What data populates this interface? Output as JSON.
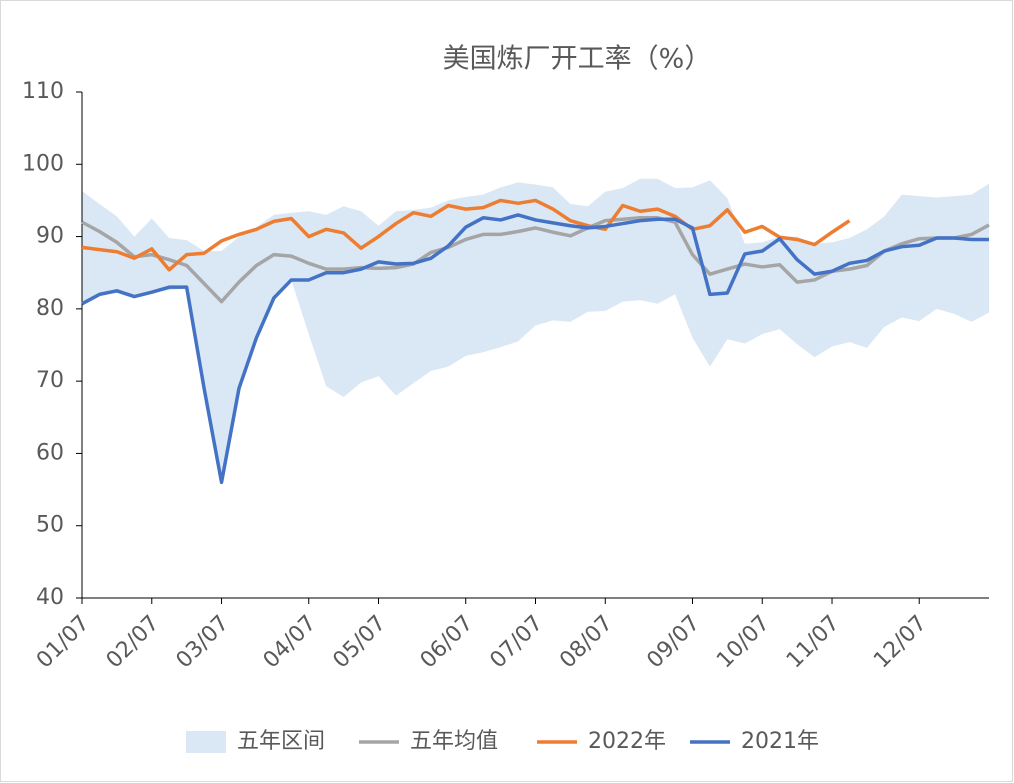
{
  "chart_data": {
    "type": "line",
    "title": "美国炼厂开工率（%）",
    "categories": [
      "01/07",
      null,
      null,
      null,
      "02/07",
      null,
      null,
      null,
      "03/07",
      null,
      null,
      null,
      null,
      "04/07",
      null,
      null,
      null,
      "05/07",
      null,
      null,
      null,
      null,
      "06/07",
      null,
      null,
      null,
      "07/07",
      null,
      null,
      null,
      "08/07",
      null,
      null,
      null,
      null,
      "09/07",
      null,
      null,
      null,
      "10/07",
      null,
      null,
      null,
      "11/07",
      null,
      null,
      null,
      null,
      "12/07",
      null,
      null,
      null,
      null
    ],
    "ylim": [
      40,
      110
    ],
    "yticks": [
      40,
      50,
      60,
      70,
      80,
      90,
      100,
      110
    ],
    "band": {
      "name": "五年区间",
      "color": "#dae8f5",
      "upper": [
        96.3,
        94.5,
        92.8,
        90.0,
        92.5,
        89.8,
        89.5,
        88.0,
        88.0,
        90.0,
        91.3,
        93.0,
        93.3,
        93.5,
        93.0,
        94.2,
        93.5,
        91.5,
        93.5,
        93.7,
        94.0,
        95.0,
        95.5,
        95.8,
        96.8,
        97.5,
        97.2,
        96.8,
        94.5,
        94.2,
        96.2,
        96.7,
        98.0,
        98.0,
        96.7,
        96.8,
        97.8,
        95.3,
        89.0,
        89.2,
        90.0,
        90.0,
        89.0,
        89.2,
        89.8,
        91.0,
        92.8,
        95.8,
        95.6,
        95.4,
        95.6,
        95.8,
        97.3
      ],
      "lower": [
        80.5,
        82.0,
        82.2,
        81.8,
        82.2,
        82.6,
        82.8,
        69,
        56,
        69,
        76,
        81.5,
        84,
        76.5,
        69.3,
        67.8,
        69.8,
        70.7,
        68.0,
        69.7,
        71.4,
        72.0,
        73.5,
        74.0,
        74.7,
        75.5,
        77.7,
        78.4,
        78.2,
        79.6,
        79.7,
        81.0,
        81.2,
        80.7,
        82.0,
        76.0,
        72.0,
        75.8,
        75.2,
        76.5,
        77.2,
        75.1,
        73.3,
        74.8,
        75.4,
        74.6,
        77.5,
        78.8,
        78.3,
        80.0,
        79.3,
        78.2,
        79.5
      ]
    },
    "series": [
      {
        "name": "五年均值",
        "color": "#a5a5a5",
        "values": [
          92.0,
          90.7,
          89.2,
          87.2,
          87.5,
          86.8,
          86.0,
          83.5,
          81.0,
          83.7,
          86.0,
          87.5,
          87.3,
          86.3,
          85.5,
          85.5,
          85.7,
          85.6,
          85.7,
          86.2,
          87.8,
          88.5,
          89.6,
          90.3,
          90.3,
          90.7,
          91.2,
          90.6,
          90.1,
          91.2,
          92.2,
          92.4,
          92.6,
          92.6,
          92.0,
          87.5,
          84.8,
          85.5,
          86.2,
          85.8,
          86.1,
          83.7,
          84.0,
          85.2,
          85.5,
          86.0,
          88.0,
          89.0,
          89.7,
          89.8,
          89.8,
          90.3,
          91.6
        ]
      },
      {
        "name": "2022年",
        "color": "#ed7d31",
        "values": [
          88.5,
          88.2,
          87.9,
          87.0,
          88.3,
          85.4,
          87.5,
          87.7,
          89.4,
          90.3,
          91.0,
          92.1,
          92.5,
          90.0,
          91.0,
          90.5,
          88.4,
          90.0,
          91.8,
          93.3,
          92.8,
          94.3,
          93.8,
          94.0,
          95.0,
          94.6,
          95.0,
          93.8,
          92.2,
          91.5,
          91.0,
          94.3,
          93.5,
          93.8,
          92.8,
          91.0,
          91.5,
          93.7,
          90.6,
          91.4,
          89.9,
          89.6,
          88.9,
          90.6,
          92.2,
          null,
          null,
          null,
          null,
          null,
          null,
          null,
          null
        ]
      },
      {
        "name": "2021年",
        "color": "#4472c4",
        "values": [
          80.7,
          82,
          82.5,
          81.7,
          82.3,
          83,
          83,
          69,
          56,
          69,
          76,
          81.5,
          84,
          84,
          85,
          85,
          85.5,
          86.5,
          86.2,
          86.3,
          87,
          88.7,
          91.3,
          92.6,
          92.3,
          93,
          92.3,
          91.9,
          91.5,
          91.2,
          91.4,
          91.8,
          92.2,
          92.4,
          92.4,
          91.2,
          82,
          82.2,
          87.6,
          88,
          89.7,
          86.8,
          84.8,
          85.2,
          86.3,
          86.7,
          88,
          88.6,
          88.8,
          89.8,
          89.8,
          89.6,
          89.6
        ]
      }
    ]
  }
}
